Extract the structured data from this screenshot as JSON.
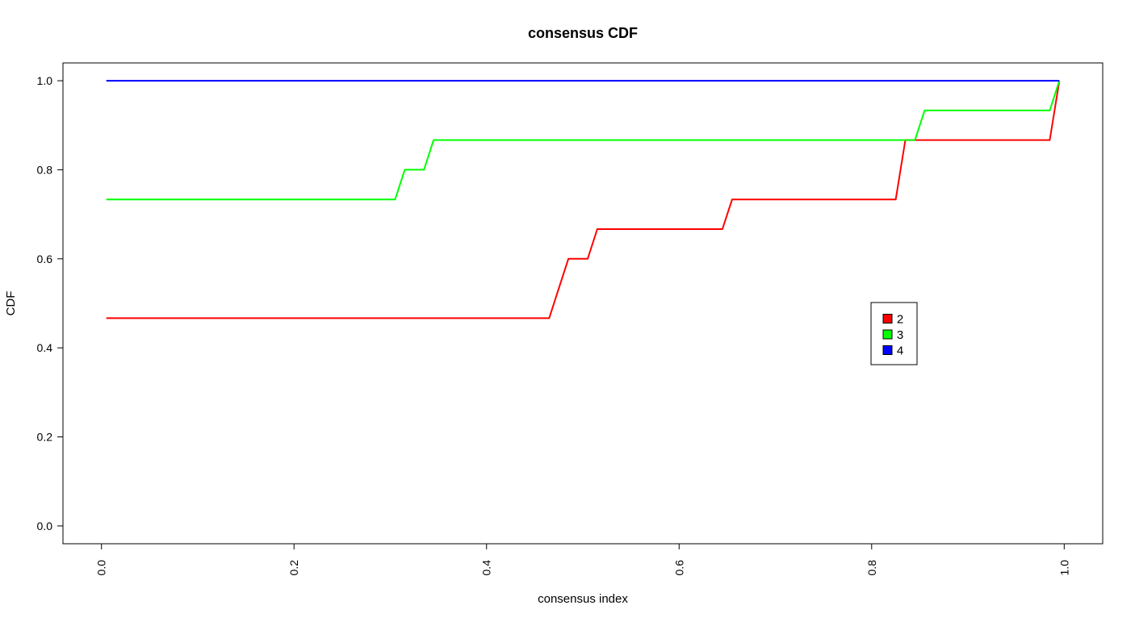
{
  "chart_data": {
    "type": "line",
    "title": "consensus CDF",
    "xlabel": "consensus index",
    "ylabel": "CDF",
    "xlim": [
      -0.04,
      1.04
    ],
    "ylim": [
      -0.04,
      1.04
    ],
    "x_ticks": [
      "0.0",
      "0.2",
      "0.4",
      "0.6",
      "0.8",
      "1.0"
    ],
    "y_ticks": [
      "0.0",
      "0.2",
      "0.4",
      "0.6",
      "0.8",
      "1.0"
    ],
    "grid": false,
    "legend_position": "right-center",
    "series": [
      {
        "name": "2",
        "color": "#ff0000",
        "x": [
          0.005,
          0.465,
          0.485,
          0.505,
          0.515,
          0.645,
          0.655,
          0.825,
          0.835,
          0.985,
          0.995
        ],
        "y": [
          0.4667,
          0.4667,
          0.6,
          0.6,
          0.6667,
          0.6667,
          0.7333,
          0.7333,
          0.8667,
          0.8667,
          1.0
        ]
      },
      {
        "name": "3",
        "color": "#00ff00",
        "x": [
          0.005,
          0.305,
          0.315,
          0.335,
          0.345,
          0.845,
          0.855,
          0.985,
          0.995
        ],
        "y": [
          0.7333,
          0.7333,
          0.8,
          0.8,
          0.8667,
          0.8667,
          0.9333,
          0.9333,
          1.0
        ]
      },
      {
        "name": "4",
        "color": "#0000ff",
        "x": [
          0.005,
          0.995
        ],
        "y": [
          1.0,
          1.0
        ]
      }
    ]
  }
}
